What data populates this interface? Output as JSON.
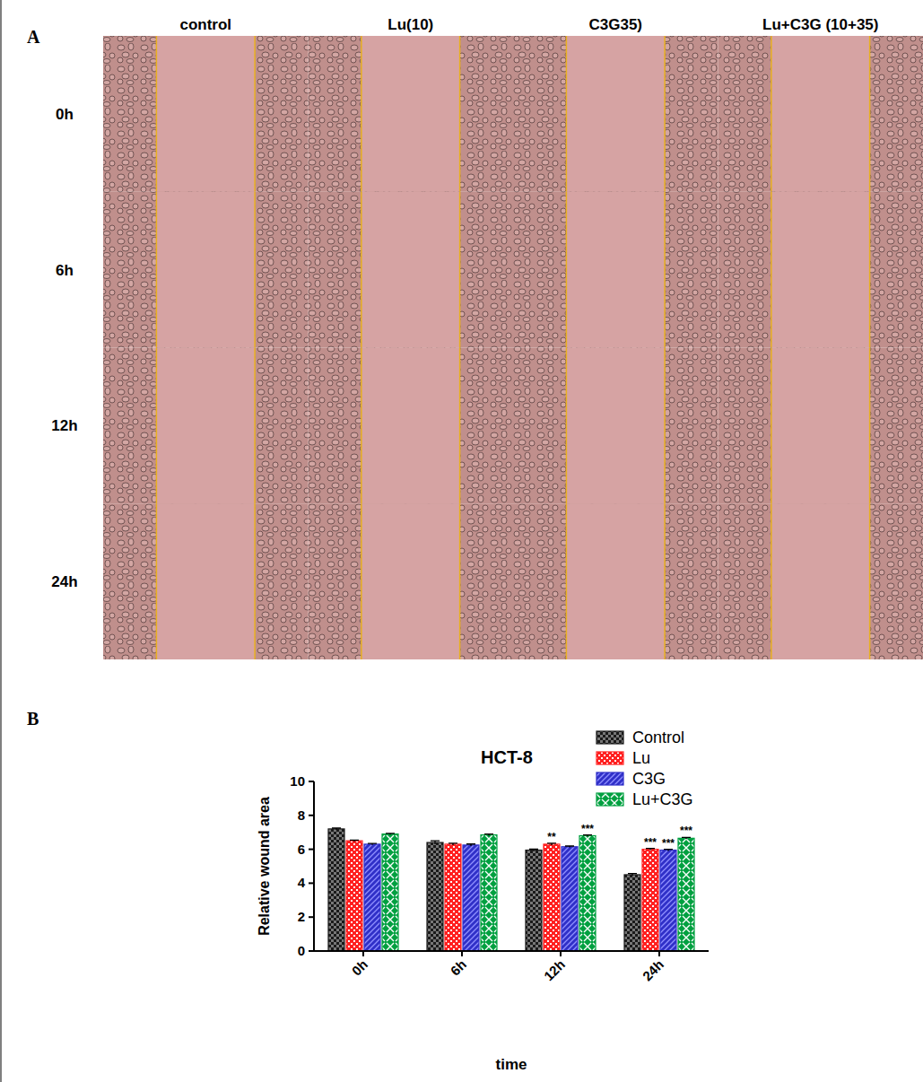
{
  "panel_a": {
    "letter": "A",
    "columns": [
      "control",
      "Lu(10)",
      "C3G35)",
      "Lu+C3G (10+35)"
    ],
    "rows": [
      "0h",
      "6h",
      "12h",
      "24h"
    ]
  },
  "panel_b": {
    "letter": "B"
  },
  "chart_data": {
    "type": "bar",
    "title": "HCT-8",
    "x_label": "time",
    "y_label": "Relative wound area",
    "categories": [
      "0h",
      "6h",
      "12h",
      "24h"
    ],
    "series": [
      {
        "name": "Control",
        "color": "#1a1a1a",
        "values": [
          7.2,
          6.4,
          5.95,
          4.5
        ],
        "errors": [
          0.05,
          0.1,
          0.06,
          0.07
        ],
        "significance": [
          null,
          null,
          null,
          null
        ]
      },
      {
        "name": "Lu",
        "color": "#ff2020",
        "values": [
          6.5,
          6.3,
          6.3,
          6.0
        ],
        "errors": [
          0.04,
          0.06,
          0.06,
          0.05
        ],
        "significance": [
          null,
          null,
          "**",
          "***"
        ]
      },
      {
        "name": "C3G",
        "color": "#3030c8",
        "values": [
          6.3,
          6.25,
          6.15,
          5.95
        ],
        "errors": [
          0.04,
          0.06,
          0.04,
          0.05
        ],
        "significance": [
          null,
          null,
          null,
          "***"
        ]
      },
      {
        "name": "Lu+C3G",
        "color": "#00a040",
        "values": [
          6.9,
          6.85,
          6.8,
          6.65
        ],
        "errors": [
          0.04,
          0.05,
          0.04,
          0.05
        ],
        "significance": [
          null,
          null,
          "***",
          "***"
        ]
      }
    ],
    "ylim": [
      0,
      10
    ],
    "yticks": [
      0,
      2,
      4,
      6,
      8,
      10
    ],
    "legend": "top-right",
    "grid": false
  }
}
